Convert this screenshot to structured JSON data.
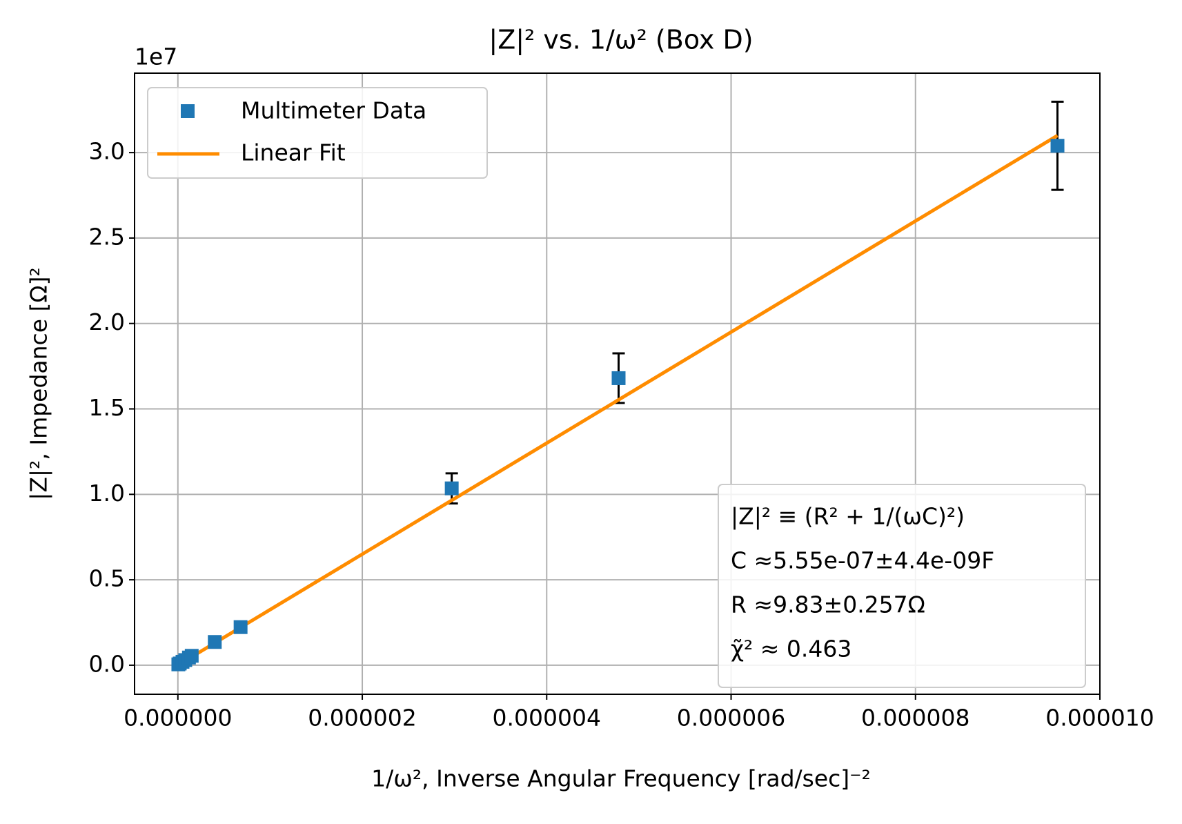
{
  "chart_data": {
    "type": "scatter-fit",
    "title": "|Z|² vs. 1/ω² (Box D)",
    "x_label": "1/ω², Inverse Angular Frequency [rad/sec]⁻²",
    "y_label": "|Z|², Impedance [Ω]²",
    "y_offset_label": "1e7",
    "xlim": [
      -4.7e-07,
      1e-05
    ],
    "ylim": [
      -1700000,
      34650000
    ],
    "xticks": [
      {
        "value": 0,
        "label": "0.000000"
      },
      {
        "value": 2e-06,
        "label": "0.000002"
      },
      {
        "value": 4e-06,
        "label": "0.000004"
      },
      {
        "value": 6e-06,
        "label": "0.000006"
      },
      {
        "value": 8e-06,
        "label": "0.000008"
      },
      {
        "value": 1e-05,
        "label": "0.000010"
      }
    ],
    "yticks": [
      {
        "value": 0,
        "label": "0.0"
      },
      {
        "value": 5000000,
        "label": "0.5"
      },
      {
        "value": 10000000,
        "label": "1.0"
      },
      {
        "value": 15000000,
        "label": "1.5"
      },
      {
        "value": 20000000,
        "label": "2.0"
      },
      {
        "value": 25000000,
        "label": "2.5"
      },
      {
        "value": 30000000,
        "label": "3.0"
      }
    ],
    "grid": true,
    "legend": "upper left",
    "series": [
      {
        "name": "Multimeter Data",
        "color": "#1f77b4",
        "x": [
          5e-09,
          2e-08,
          5e-08,
          8e-08,
          1.2e-07,
          1.5e-07,
          4e-07,
          6.8e-07,
          2.97e-06,
          4.78e-06,
          9.54e-06
        ],
        "values": [
          50000,
          100000,
          200000,
          300000,
          450000,
          550000,
          1360000,
          2230000,
          10350000,
          16800000,
          30400000
        ],
        "errors": [
          5000,
          10000,
          20000,
          30000,
          45000,
          55000,
          120000,
          200000,
          880000,
          1450000,
          2580000
        ]
      },
      {
        "name": "Linear Fit",
        "color": "#ff8c00",
        "x": [
          0,
          9.54e-06
        ],
        "values": [
          97,
          31000000
        ]
      }
    ],
    "annotations": [
      "|Z|² ≡ (R² + 1/(ωC)²)",
      "C ≈5.55e-07±4.4e-09F",
      "R ≈9.83±0.257Ω",
      "χ̃² ≈ 0.463"
    ]
  }
}
